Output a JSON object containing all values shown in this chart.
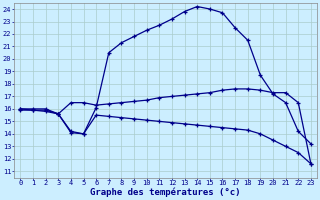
{
  "bg_color": "#cceeff",
  "line_color": "#00008b",
  "grid_color": "#aacccc",
  "xlabel": "Graphe des températures (°c)",
  "xlabel_fontsize": 6.5,
  "xlim": [
    -0.5,
    23.5
  ],
  "ylim": [
    10.5,
    24.5
  ],
  "xticks": [
    0,
    1,
    2,
    3,
    4,
    5,
    6,
    7,
    8,
    9,
    10,
    11,
    12,
    13,
    14,
    15,
    16,
    17,
    18,
    19,
    20,
    21,
    22,
    23
  ],
  "yticks": [
    11,
    12,
    13,
    14,
    15,
    16,
    17,
    18,
    19,
    20,
    21,
    22,
    23,
    24
  ],
  "tick_fontsize": 5.0,
  "curve1_x": [
    0,
    1,
    2,
    3,
    4,
    5,
    6,
    7,
    8,
    9,
    10,
    11,
    12,
    13,
    14,
    15,
    16,
    17,
    18,
    19,
    20,
    21,
    22,
    23
  ],
  "curve1_y": [
    15.9,
    15.9,
    15.9,
    15.6,
    14.2,
    14.0,
    16.1,
    20.5,
    21.3,
    21.8,
    22.3,
    22.7,
    23.2,
    23.8,
    24.2,
    24.0,
    23.7,
    22.5,
    21.5,
    18.7,
    17.2,
    16.5,
    14.2,
    13.2
  ],
  "curve2_x": [
    0,
    1,
    2,
    3,
    4,
    5,
    6,
    7,
    8,
    9,
    10,
    11,
    12,
    13,
    14,
    15,
    16,
    17,
    18,
    19,
    20,
    21,
    22,
    23
  ],
  "curve2_y": [
    16.0,
    16.0,
    16.0,
    15.6,
    16.5,
    16.5,
    16.3,
    16.4,
    16.5,
    16.6,
    16.7,
    16.9,
    17.0,
    17.1,
    17.2,
    17.3,
    17.5,
    17.6,
    17.6,
    17.5,
    17.3,
    17.3,
    16.5,
    11.6
  ],
  "curve3_x": [
    0,
    1,
    2,
    3,
    4,
    5,
    6,
    7,
    8,
    9,
    10,
    11,
    12,
    13,
    14,
    15,
    16,
    17,
    18,
    19,
    20,
    21,
    22,
    23
  ],
  "curve3_y": [
    16.0,
    15.9,
    15.8,
    15.6,
    14.1,
    14.0,
    15.5,
    15.4,
    15.3,
    15.2,
    15.1,
    15.0,
    14.9,
    14.8,
    14.7,
    14.6,
    14.5,
    14.4,
    14.3,
    14.0,
    13.5,
    13.0,
    12.5,
    11.6
  ]
}
